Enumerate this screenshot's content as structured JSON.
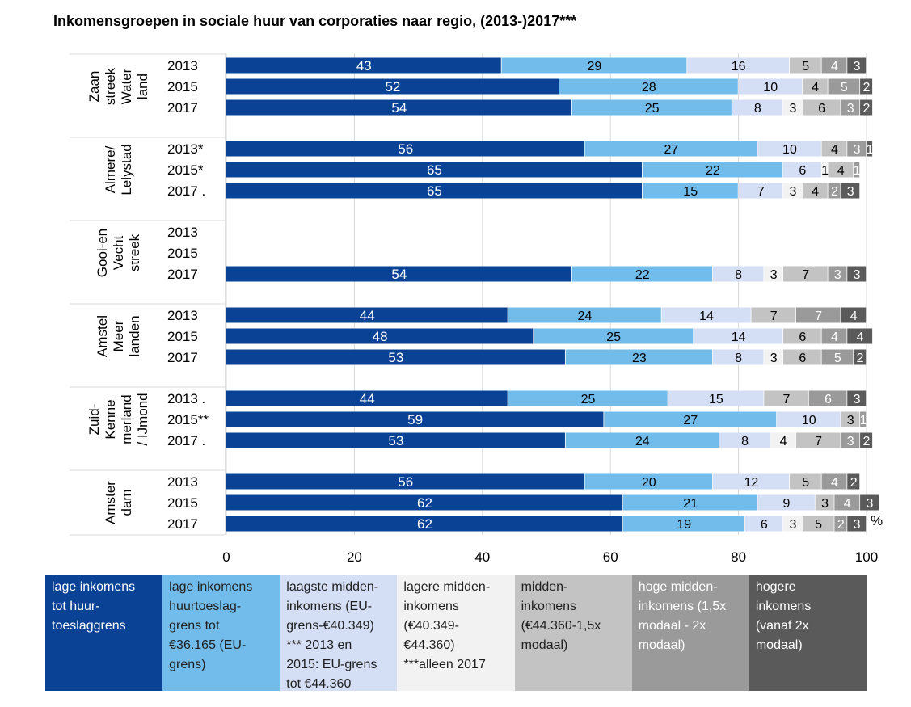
{
  "chart_data": {
    "type": "bar",
    "stacked": true,
    "orientation": "horizontal",
    "title": "Inkomensgroepen in sociale huur van corporaties naar regio, (2013-)2017***",
    "unit_label": "%",
    "xlim": [
      0,
      100
    ],
    "x_ticks": [
      "0",
      "20",
      "40",
      "60",
      "80",
      "100"
    ],
    "colors": [
      "#0a4396",
      "#72bcec",
      "#d4def4",
      "#f2f2f2",
      "#c3c3c3",
      "#9a9a9a",
      "#5a5a5a"
    ],
    "label_colors": [
      "#ffffff",
      "#000000",
      "#000000",
      "#000000",
      "#000000",
      "#ffffff",
      "#ffffff"
    ],
    "series_names": [
      "lage inkomens tot huurtoeslaggrens",
      "lage inkomens huurtoeslaggrens tot €36.165 (EU-grens)",
      "laagste middeninkomens (EU-grens-€40.349) *** 2013 en 2015: EU-grens tot €44.360",
      "lagere middeninkomens (€40.349-€44.360) ***alleen 2017",
      "middeninkomens (€44.360-1,5x modaal)",
      "hoge middeninkomens (1,5x modaal - 2x modaal)",
      "hogere inkomens (vanaf 2x modaal)"
    ],
    "groups": [
      {
        "region": [
          "Zaan",
          "streek",
          "Water",
          "land"
        ],
        "rows": [
          {
            "year": "2013",
            "values": [
              43,
              29,
              16,
              0,
              5,
              4,
              3
            ]
          },
          {
            "year": "2015",
            "values": [
              52,
              28,
              10,
              0,
              4,
              5,
              2
            ]
          },
          {
            "year": "2017",
            "values": [
              54,
              25,
              8,
              3,
              6,
              3,
              2
            ]
          }
        ]
      },
      {
        "region": [
          "Almere/",
          "Lelystad"
        ],
        "rows": [
          {
            "year": "2013*",
            "values": [
              56,
              27,
              10,
              0,
              4,
              3,
              1
            ]
          },
          {
            "year": "2015*",
            "values": [
              65,
              22,
              6,
              1,
              4,
              1,
              0
            ]
          },
          {
            "year": "2017 .",
            "values": [
              65,
              15,
              7,
              3,
              4,
              2,
              3
            ]
          }
        ]
      },
      {
        "region": [
          "Gooi-en",
          "Vecht",
          "streek"
        ],
        "rows": [
          {
            "year": "2013",
            "values": []
          },
          {
            "year": "2015",
            "values": []
          },
          {
            "year": "2017",
            "values": [
              54,
              22,
              8,
              3,
              7,
              3,
              3
            ]
          }
        ]
      },
      {
        "region": [
          "Amstel",
          "Meer",
          "landen"
        ],
        "rows": [
          {
            "year": "2013",
            "values": [
              44,
              24,
              14,
              0,
              7,
              7,
              4
            ]
          },
          {
            "year": "2015",
            "values": [
              48,
              25,
              14,
              0,
              6,
              4,
              4
            ]
          },
          {
            "year": "2017",
            "values": [
              53,
              23,
              8,
              3,
              6,
              5,
              2
            ]
          }
        ]
      },
      {
        "region": [
          "Zuid-",
          "Kenne",
          "merland",
          "/ IJmond"
        ],
        "rows": [
          {
            "year": "2013 .",
            "values": [
              44,
              25,
              15,
              0,
              7,
              6,
              3
            ]
          },
          {
            "year": "2015**",
            "values": [
              59,
              27,
              10,
              0,
              3,
              1,
              0
            ]
          },
          {
            "year": "2017 .",
            "values": [
              53,
              24,
              8,
              4,
              7,
              3,
              2
            ]
          }
        ]
      },
      {
        "region": [
          "Amster",
          "dam"
        ],
        "rows": [
          {
            "year": "2013",
            "values": [
              56,
              20,
              12,
              0,
              5,
              4,
              2
            ]
          },
          {
            "year": "2015",
            "values": [
              62,
              21,
              9,
              0,
              3,
              4,
              3
            ]
          },
          {
            "year": "2017",
            "values": [
              62,
              19,
              6,
              3,
              5,
              2,
              3
            ]
          }
        ]
      }
    ]
  },
  "legend": {
    "items": [
      {
        "text": "lage inkomens\n tot huur-\ntoeslaggrens",
        "bg": "#0a4396",
        "fg": "#ffffff"
      },
      {
        "text": "lage inkomens\nhuurtoeslag-\ngrens tot\n€36.165 (EU-\ngrens)",
        "bg": "#72bcec",
        "fg": "#1f1f1f"
      },
      {
        "text": "laagste midden-\ninkomens (EU-\ngrens-€40.349)\n*** 2013 en\n2015: EU-grens\ntot €44.360",
        "bg": "#d4def4",
        "fg": "#1f1f1f"
      },
      {
        "text": "lagere midden-\ninkomens\n(€40.349-\n€44.360)\n***alleen 2017",
        "bg": "#f2f2f2",
        "fg": "#1f1f1f"
      },
      {
        "text": "midden-\ninkomens\n(€44.360-1,5x\nmodaal)",
        "bg": "#c3c3c3",
        "fg": "#1f1f1f"
      },
      {
        "text": "hoge midden-\ninkomens (1,5x\nmodaal - 2x\nmodaal)",
        "bg": "#9a9a9a",
        "fg": "#ffffff"
      },
      {
        "text": "hogere\ninkomens\n(vanaf 2x\nmodaal)",
        "bg": "#5a5a5a",
        "fg": "#ffffff"
      }
    ]
  }
}
